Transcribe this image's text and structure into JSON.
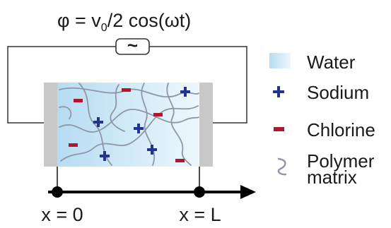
{
  "formula": {
    "prefix": "φ = v",
    "subscript": "0",
    "suffix": "/2 cos(ωt)"
  },
  "source_symbol": "~",
  "axis": {
    "start_label": "x = 0",
    "end_label": "x = L"
  },
  "legend": {
    "items": [
      {
        "key": "water",
        "label": "Water",
        "color": "#bfe0f2"
      },
      {
        "key": "sodium",
        "label": "Sodium",
        "color": "#23348e"
      },
      {
        "key": "chlorine",
        "label": "Chlorine",
        "color": "#b0172f"
      },
      {
        "key": "polymer",
        "label_lines": [
          "Polymer",
          "matrix"
        ],
        "color": "#8f96a6"
      }
    ]
  },
  "colors": {
    "water_dark": "#b5dcf2",
    "water_light": "#eef7fc",
    "electrode": "#c8c8c8",
    "wire": "#333333",
    "polymer": "#8f96a6",
    "sodium": "#23348e",
    "chlorine": "#b0172f"
  }
}
